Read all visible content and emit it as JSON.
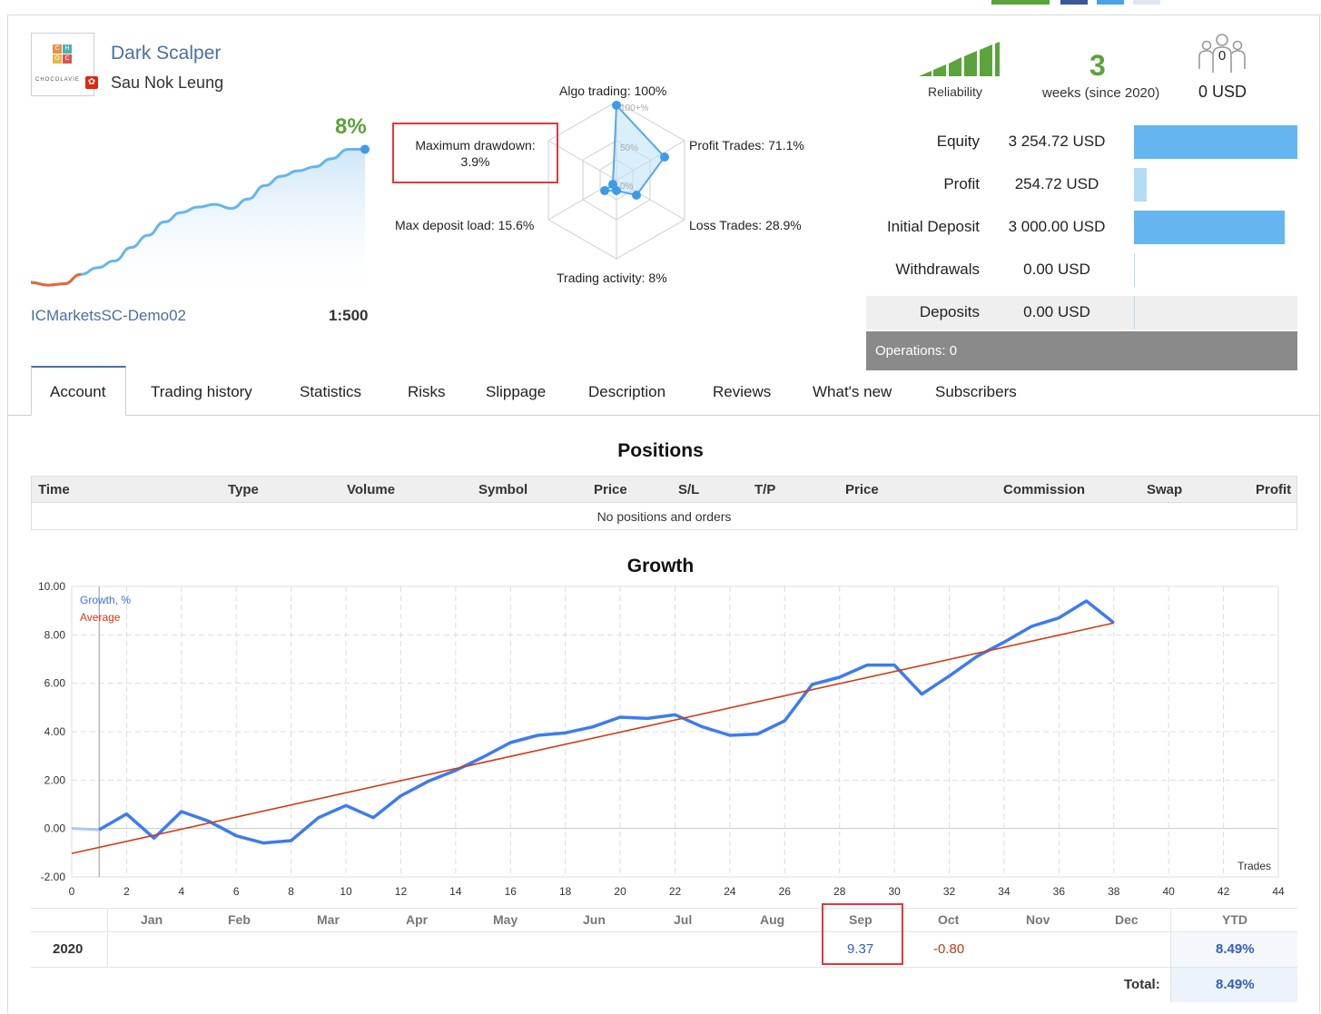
{
  "signal": {
    "name": "Dark Scalper",
    "author": "Sau Nok Leung",
    "logo_text": "CHOCOLAVIE",
    "growth": "8%",
    "server": "ICMarketsSC-Demo02",
    "leverage": "1:500"
  },
  "radar": {
    "algo": "Algo trading: 100%",
    "profit_trades": "Profit Trades: 71.1%",
    "loss_trades": "Loss Trades: 28.9%",
    "activity": "Trading activity: 8%",
    "deposit_load": "Max deposit load: 15.6%",
    "drawdown_label": "Maximum drawdown:",
    "drawdown_value": "3.9%",
    "ring_100": "100+%",
    "ring_50": "50%",
    "ring_0": "0%"
  },
  "stats": {
    "reliability_label": "Reliability",
    "weeks": "3",
    "weeks_label": "weeks (since 2020)",
    "subscribers_count": "0",
    "subscribers_usd": "0 USD"
  },
  "finance": [
    {
      "label": "Equity",
      "value": "3 254.72 USD",
      "bar_fraction": 1.0,
      "bar_color": "#64b5f0"
    },
    {
      "label": "Profit",
      "value": "254.72 USD",
      "bar_fraction": 0.08,
      "bar_color": "#b5dcf7"
    },
    {
      "label": "Initial Deposit",
      "value": "3 000.00 USD",
      "bar_fraction": 0.92,
      "bar_color": "#64b5f0"
    },
    {
      "label": "Withdrawals",
      "value": "0.00 USD",
      "bar_fraction": 0,
      "bar_color": "#64b5f0"
    },
    {
      "label": "Deposits",
      "value": "0.00 USD",
      "bar_fraction": 0,
      "bar_color": "#64b5f0"
    }
  ],
  "operations": "Operations: 0",
  "tabs": [
    "Account",
    "Trading history",
    "Statistics",
    "Risks",
    "Slippage",
    "Description",
    "Reviews",
    "What's new",
    "Subscribers"
  ],
  "positions": {
    "title": "Positions",
    "columns": [
      "Time",
      "Type",
      "Volume",
      "Symbol",
      "Price",
      "S/L",
      "T/P",
      "Price",
      "Commission",
      "Swap",
      "Profit"
    ],
    "empty": "No positions and orders"
  },
  "growth": {
    "title": "Growth",
    "legend_growth": "Growth, %",
    "legend_average": "Average",
    "x_axis_label": "Trades"
  },
  "monthly": {
    "months": [
      "Jan",
      "Feb",
      "Mar",
      "Apr",
      "May",
      "Jun",
      "Jul",
      "Aug",
      "Sep",
      "Oct",
      "Nov",
      "Dec"
    ],
    "ytd_label": "YTD",
    "year": "2020",
    "sep": "9.37",
    "oct": "-0.80",
    "ytd": "8.49%",
    "total_label": "Total:",
    "total": "8.49%"
  },
  "chart_data": {
    "type": "line",
    "xlabel": "Trades",
    "ylabel": "",
    "xlim": [
      0,
      44
    ],
    "ylim": [
      -2,
      10
    ],
    "xticks": [
      0,
      2,
      4,
      6,
      8,
      10,
      12,
      14,
      16,
      18,
      20,
      22,
      24,
      26,
      28,
      30,
      32,
      34,
      36,
      38,
      40,
      42,
      44
    ],
    "yticks": [
      "-2.00",
      "0.00",
      "2.00",
      "4.00",
      "6.00",
      "8.00",
      "10.00"
    ],
    "grid": true,
    "series": [
      {
        "name": "Growth, %",
        "color": "#3d7bf0",
        "x": [
          0,
          1,
          2,
          3,
          4,
          5,
          6,
          7,
          8,
          9,
          10,
          11,
          12,
          13,
          14,
          15,
          16,
          17,
          18,
          19,
          20,
          21,
          22,
          23,
          24,
          25,
          26,
          27,
          28,
          29,
          30,
          31,
          32,
          33,
          34,
          35,
          36,
          37,
          38
        ],
        "values": [
          0.0,
          -0.05,
          0.6,
          -0.4,
          0.7,
          0.3,
          -0.3,
          -0.6,
          -0.5,
          0.45,
          0.95,
          0.45,
          1.35,
          1.95,
          2.4,
          2.95,
          3.55,
          3.85,
          3.95,
          4.2,
          4.6,
          4.55,
          4.7,
          4.2,
          3.85,
          3.9,
          4.45,
          5.95,
          6.25,
          6.75,
          6.75,
          5.55,
          6.3,
          7.1,
          7.7,
          8.35,
          8.7,
          9.4,
          8.5
        ]
      },
      {
        "name": "Average",
        "color": "#d23a15",
        "x": [
          0,
          38
        ],
        "values": [
          -1.03,
          8.49
        ]
      }
    ]
  },
  "equity_mini": {
    "values": [
      0.0,
      -0.2,
      -0.1,
      0.6,
      1.1,
      1.6,
      2.6,
      3.5,
      4.5,
      5.2,
      5.6,
      5.8,
      5.5,
      6.2,
      7.2,
      7.9,
      8.3,
      8.6,
      9.2,
      9.9,
      9.9
    ]
  }
}
